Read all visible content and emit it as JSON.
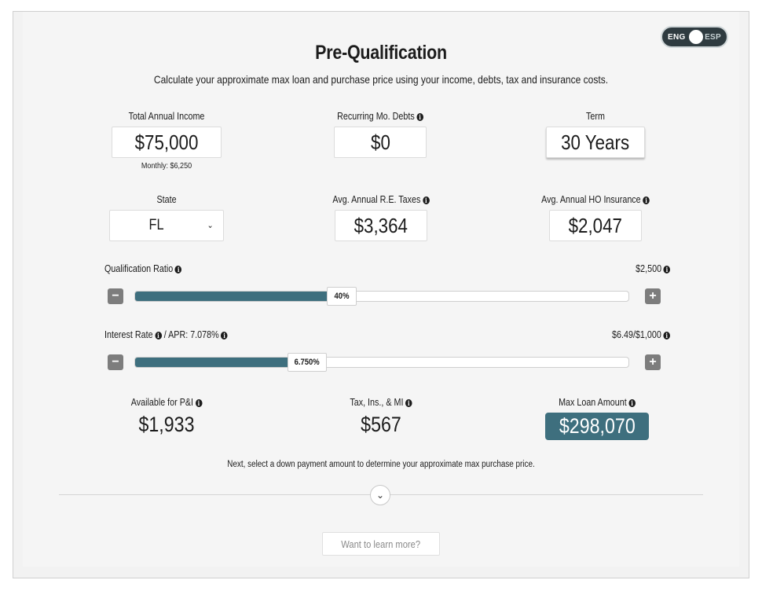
{
  "lang_toggle": {
    "left": "ENG",
    "right": "ESP"
  },
  "header": {
    "title": "Pre-Qualification",
    "subtitle": "Calculate your approximate max loan and purchase price using your income, debts, tax and insurance costs."
  },
  "fields": {
    "income": {
      "label": "Total Annual Income",
      "value": "$75,000",
      "sub": "Monthly: $6,250"
    },
    "debts": {
      "label": "Recurring Mo. Debts",
      "value": "$0"
    },
    "term": {
      "label": "Term",
      "value": "30 Years"
    },
    "state": {
      "label": "State",
      "value": "FL"
    },
    "taxes": {
      "label": "Avg. Annual R.E. Taxes",
      "value": "$3,364"
    },
    "insurance": {
      "label": "Avg. Annual HO Insurance",
      "value": "$2,047"
    }
  },
  "sliders": {
    "qualification": {
      "label": "Qualification Ratio",
      "right": "$2,500",
      "value": "40%",
      "fill_pct": 39
    },
    "interest": {
      "label": "Interest Rate",
      "apr": "/ APR: 7.078%",
      "right": "$6.49/$1,000",
      "value": "6.750%",
      "fill_pct": 31
    }
  },
  "results": {
    "pi": {
      "label": "Available for P&I",
      "value": "$1,933"
    },
    "tax": {
      "label": "Tax, Ins., & MI",
      "value": "$567"
    },
    "max": {
      "label": "Max Loan Amount",
      "value": "$298,070"
    }
  },
  "next_text": "Next, select a down payment amount to determine your approximate max purchase price.",
  "learn_more": "Want to learn more?",
  "colors": {
    "accent": "#3e6f7e",
    "button_gray": "#7d7d7d"
  }
}
